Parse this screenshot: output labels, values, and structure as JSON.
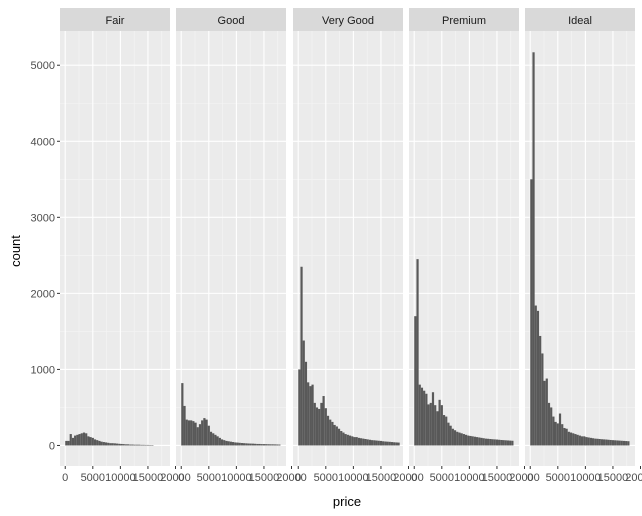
{
  "chart_data": {
    "type": "bar",
    "subtype": "faceted-histogram",
    "xlabel": "price",
    "ylabel": "count",
    "x_range": [
      -950,
      19000
    ],
    "y_range": [
      -270,
      5450
    ],
    "bin_start": 0,
    "bin_width": 400,
    "x_ticks": [
      0,
      5000,
      10000,
      15000,
      20000
    ],
    "x_tick_labels": [
      "0",
      "5000",
      "10000",
      "15000",
      "20000"
    ],
    "y_ticks": [
      0,
      1000,
      2000,
      3000,
      4000,
      5000
    ],
    "y_tick_labels": [
      "0",
      "1000",
      "2000",
      "3000",
      "4000",
      "5000"
    ],
    "grid": true,
    "legend": "none",
    "bar_color": "#595959",
    "panel_background": "#ebebeb",
    "strip_background": "#d9d9d9",
    "facets": [
      {
        "name": "Fair",
        "counts": [
          60,
          60,
          150,
          100,
          130,
          140,
          150,
          160,
          170,
          160,
          120,
          110,
          100,
          80,
          70,
          60,
          50,
          45,
          40,
          35,
          30,
          30,
          28,
          25,
          22,
          20,
          18,
          15,
          15,
          12,
          12,
          10,
          10,
          10,
          8,
          8,
          7,
          7,
          6,
          6
        ]
      },
      {
        "name": "Good",
        "counts": [
          820,
          520,
          340,
          330,
          330,
          320,
          300,
          240,
          280,
          330,
          360,
          340,
          260,
          180,
          160,
          140,
          120,
          100,
          80,
          70,
          60,
          55,
          50,
          45,
          40,
          38,
          35,
          32,
          30,
          28,
          26,
          25,
          24,
          22,
          20,
          20,
          18,
          18,
          17,
          16,
          15,
          15,
          14,
          13,
          12
        ]
      },
      {
        "name": "Very Good",
        "counts": [
          1000,
          2350,
          1380,
          1100,
          830,
          780,
          800,
          560,
          500,
          480,
          560,
          650,
          490,
          390,
          340,
          310,
          270,
          250,
          220,
          190,
          170,
          150,
          140,
          130,
          120,
          110,
          110,
          100,
          95,
          90,
          85,
          80,
          75,
          70,
          68,
          65,
          62,
          60,
          55,
          52,
          50,
          48,
          45,
          42,
          40,
          38
        ]
      },
      {
        "name": "Premium",
        "counts": [
          1700,
          2450,
          800,
          760,
          720,
          680,
          540,
          560,
          700,
          530,
          450,
          600,
          530,
          400,
          380,
          300,
          260,
          220,
          200,
          180,
          170,
          160,
          150,
          140,
          130,
          125,
          120,
          115,
          110,
          105,
          100,
          95,
          90,
          88,
          85,
          82,
          80,
          78,
          75,
          72,
          70,
          68,
          66,
          64,
          62
        ]
      },
      {
        "name": "Ideal",
        "counts": [
          3500,
          5170,
          1840,
          1770,
          1440,
          1210,
          850,
          880,
          560,
          500,
          380,
          310,
          290,
          420,
          280,
          230,
          220,
          180,
          170,
          160,
          150,
          140,
          130,
          120,
          120,
          110,
          105,
          100,
          95,
          90,
          88,
          85,
          82,
          80,
          78,
          75,
          72,
          70,
          68,
          66,
          64,
          62,
          60,
          58,
          56
        ]
      }
    ]
  }
}
